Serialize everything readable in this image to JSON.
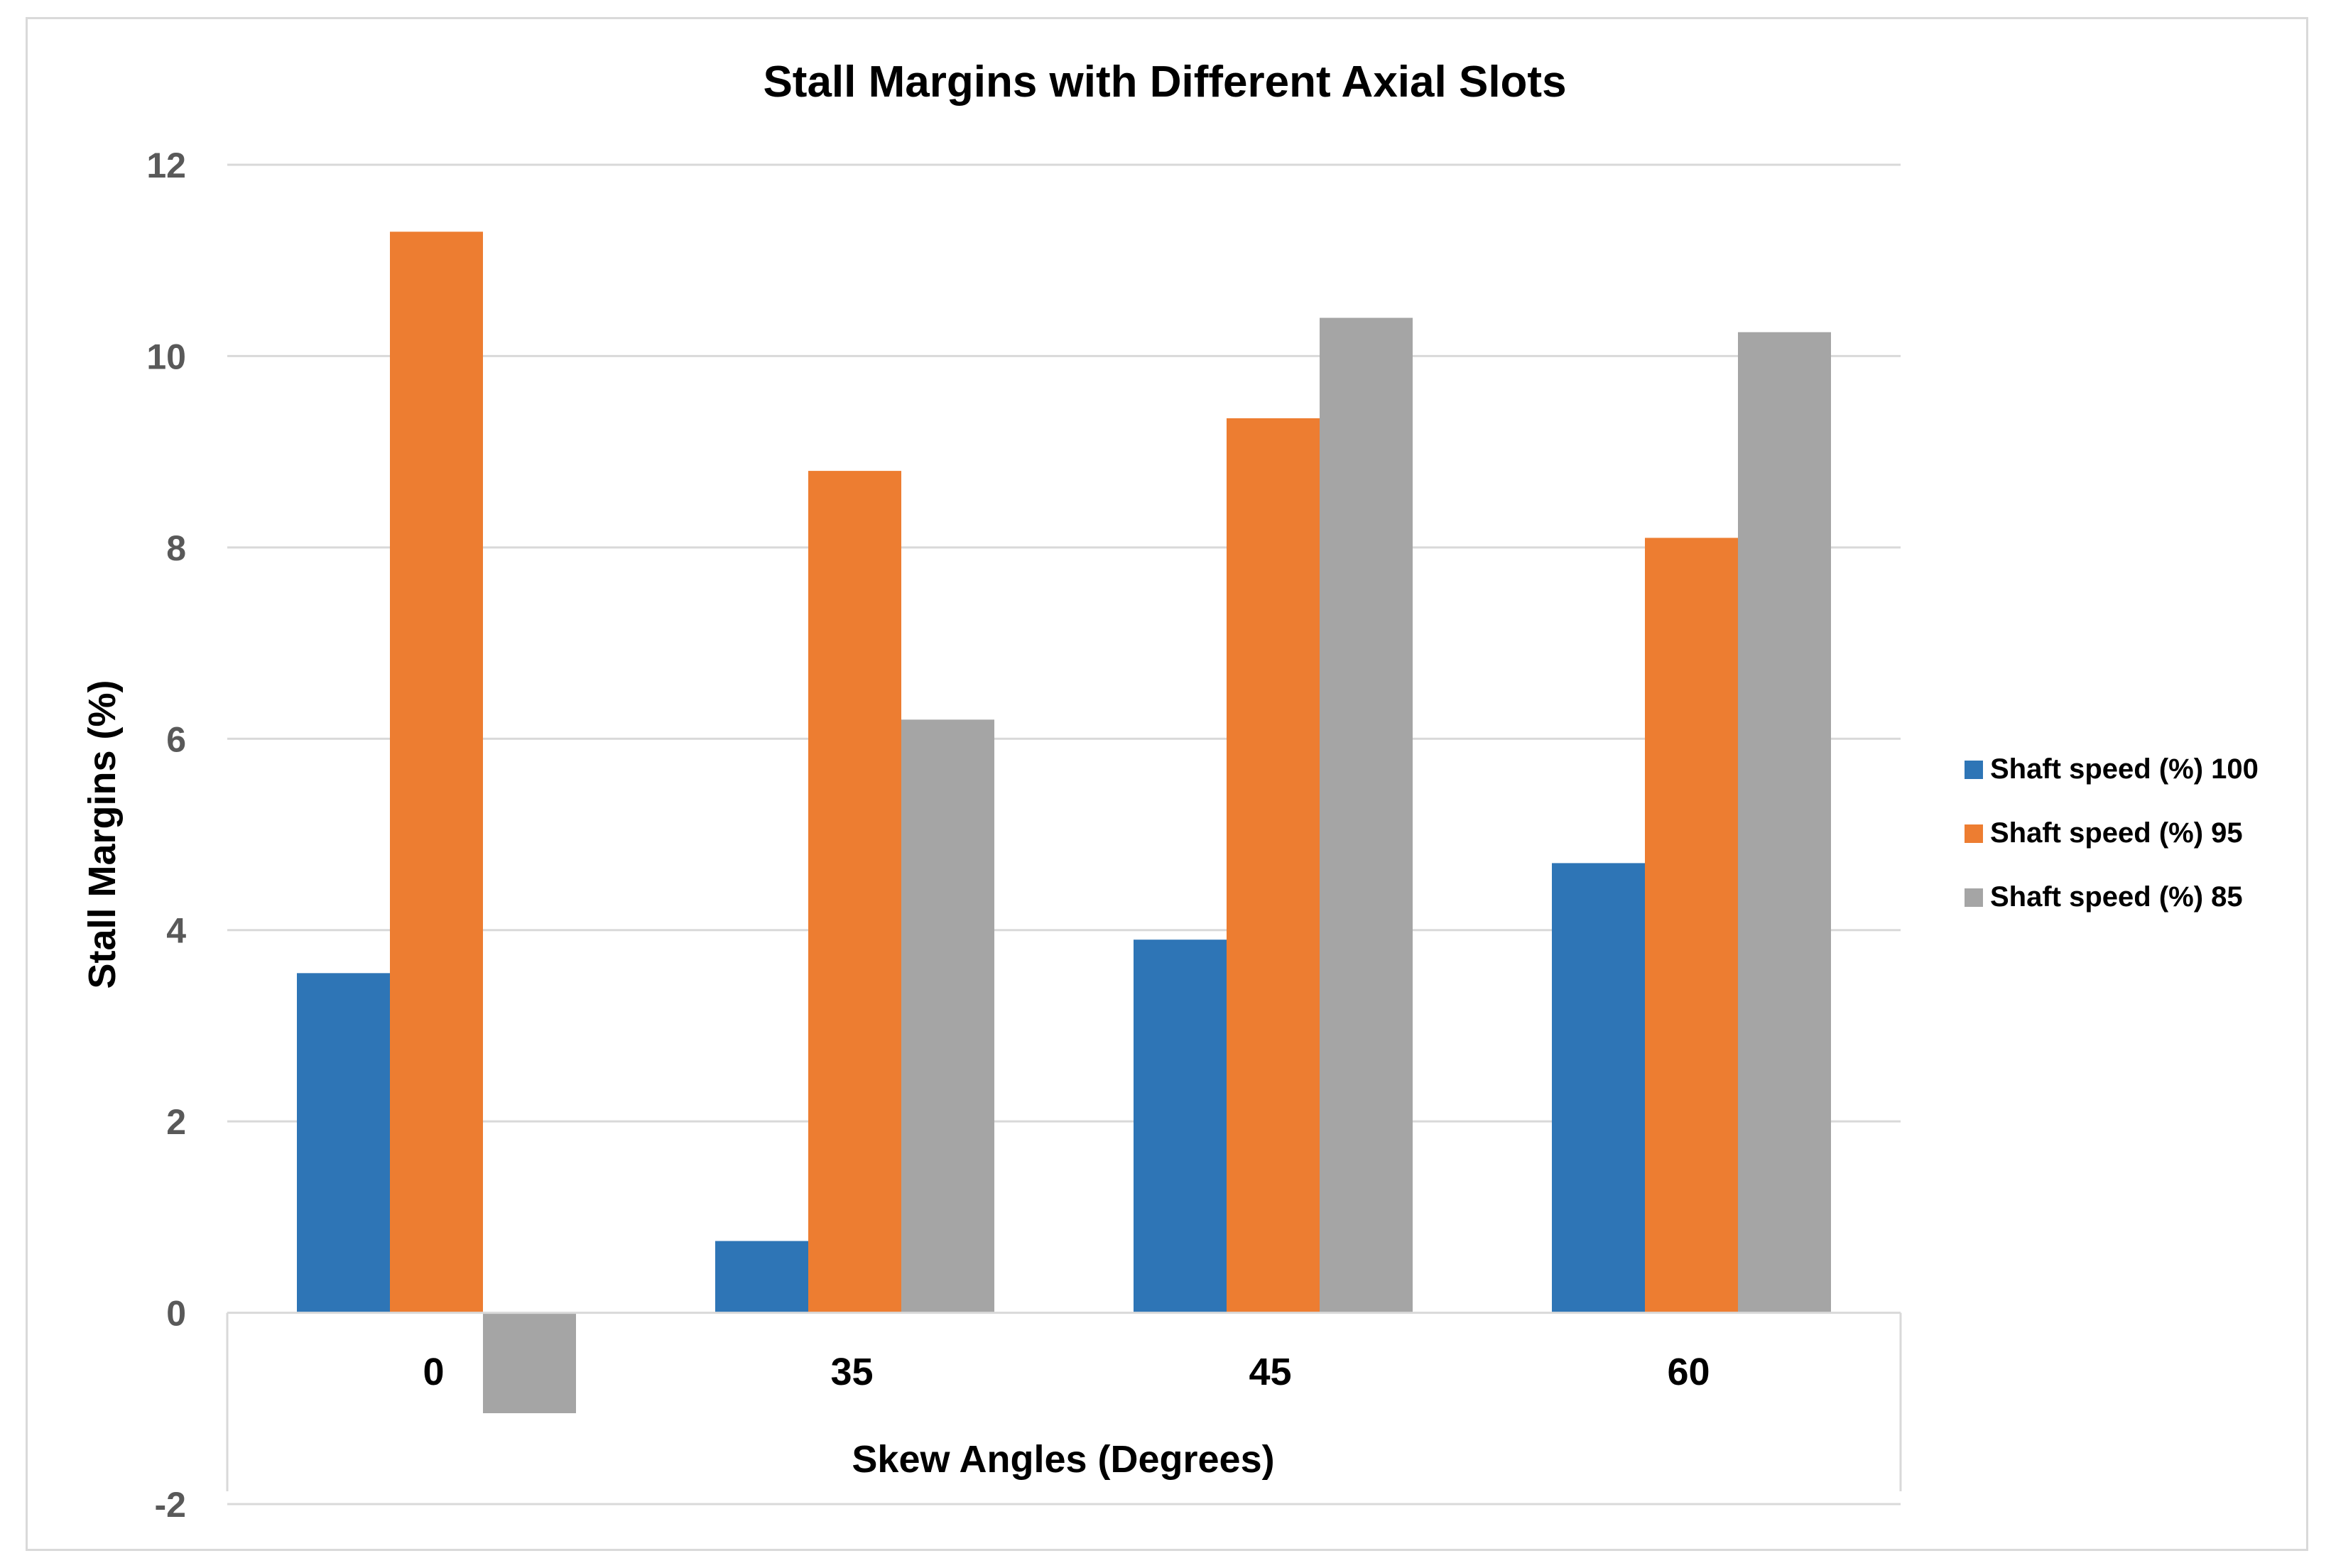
{
  "chart_data": {
    "type": "bar",
    "title": "Stall Margins with Different Axial Slots",
    "xlabel": "Skew Angles (Degrees)",
    "ylabel": "Stall Margins (%)",
    "categories": [
      "0",
      "35",
      "45",
      "60"
    ],
    "ylim": [
      -2,
      12
    ],
    "yticks": [
      -2,
      0,
      2,
      4,
      6,
      8,
      10,
      12
    ],
    "grid": true,
    "legend_position": "right",
    "series": [
      {
        "name": "Shaft speed (%) 100",
        "color": "#2e75b6",
        "values": [
          3.55,
          0.75,
          3.9,
          4.7
        ]
      },
      {
        "name": "Shaft speed (%) 95",
        "color": "#ed7d31",
        "values": [
          11.3,
          8.8,
          9.35,
          8.1
        ]
      },
      {
        "name": "Shaft speed (%) 85",
        "color": "#a5a5a5",
        "values": [
          -1.05,
          6.2,
          10.4,
          10.25
        ]
      }
    ]
  }
}
